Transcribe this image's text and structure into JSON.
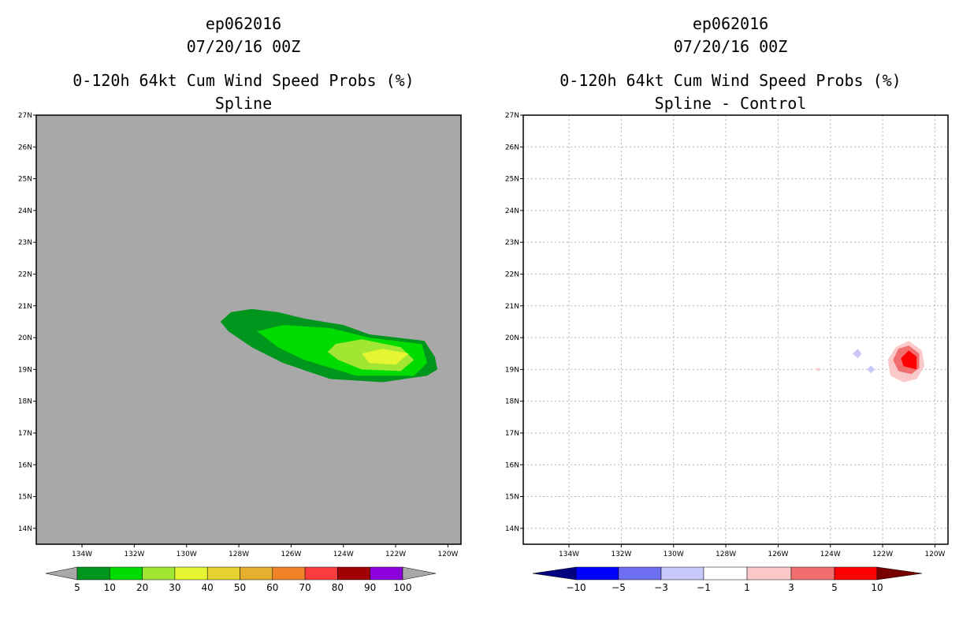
{
  "panels": [
    {
      "storm_id": "ep062016",
      "datetime": "07/20/16 00Z",
      "title": "0-120h 64kt Cum Wind Speed Probs (%)",
      "subtitle": "Spline"
    },
    {
      "storm_id": "ep062016",
      "datetime": "07/20/16 00Z",
      "title": "0-120h 64kt Cum Wind Speed Probs (%)",
      "subtitle": "Spline - Control"
    }
  ],
  "axes": {
    "lat_labels": [
      "14N",
      "15N",
      "16N",
      "17N",
      "18N",
      "19N",
      "20N",
      "21N",
      "22N",
      "23N",
      "24N",
      "25N",
      "26N",
      "27N"
    ],
    "lon_labels": [
      "134W",
      "132W",
      "130W",
      "128W",
      "126W",
      "124W",
      "122W",
      "120W"
    ]
  },
  "chart_data": [
    {
      "type": "heatmap",
      "title": "0-120h 64kt Cum Wind Speed Probs (%)",
      "subtitle": "Spline",
      "x_range_lon": [
        -135.75,
        -119.5
      ],
      "y_range_lat": [
        13.5,
        27.0
      ],
      "background_color": "#a8a8a8",
      "legend": {
        "levels": [
          "5",
          "10",
          "20",
          "30",
          "40",
          "50",
          "60",
          "70",
          "80",
          "90",
          "100"
        ],
        "colors": [
          "#00961e",
          "#00dc00",
          "#a0e632",
          "#e6f532",
          "#e6d232",
          "#e6af2d",
          "#f08228",
          "#fa3c3c",
          "#a00000",
          "#8c00dc"
        ]
      },
      "contours": [
        {
          "level": 5,
          "color": "#00961e",
          "polygon": [
            [
              -128.7,
              20.5
            ],
            [
              -128.3,
              20.8
            ],
            [
              -127.5,
              20.9
            ],
            [
              -126.5,
              20.8
            ],
            [
              -125.5,
              20.6
            ],
            [
              -124.0,
              20.4
            ],
            [
              -123.0,
              20.1
            ],
            [
              -120.9,
              19.9
            ],
            [
              -120.5,
              19.4
            ],
            [
              -120.4,
              19.0
            ],
            [
              -120.8,
              18.8
            ],
            [
              -122.5,
              18.6
            ],
            [
              -124.5,
              18.7
            ],
            [
              -126.3,
              19.2
            ],
            [
              -127.5,
              19.7
            ],
            [
              -128.4,
              20.2
            ]
          ]
        },
        {
          "level": 10,
          "color": "#00dc00",
          "polygon": [
            [
              -127.3,
              20.2
            ],
            [
              -126.3,
              20.4
            ],
            [
              -124.5,
              20.3
            ],
            [
              -123.0,
              20.0
            ],
            [
              -121.0,
              19.8
            ],
            [
              -120.8,
              19.2
            ],
            [
              -121.3,
              18.8
            ],
            [
              -123.5,
              18.8
            ],
            [
              -125.5,
              19.3
            ],
            [
              -126.5,
              19.7
            ]
          ]
        },
        {
          "level": 20,
          "color": "#a0e632",
          "polygon": [
            [
              -124.3,
              19.8
            ],
            [
              -123.3,
              19.95
            ],
            [
              -121.8,
              19.7
            ],
            [
              -121.3,
              19.3
            ],
            [
              -121.8,
              18.95
            ],
            [
              -123.3,
              19.0
            ],
            [
              -124.2,
              19.3
            ],
            [
              -124.6,
              19.55
            ]
          ]
        },
        {
          "level": 30,
          "color": "#e6f532",
          "polygon": [
            [
              -123.3,
              19.5
            ],
            [
              -122.5,
              19.65
            ],
            [
              -121.5,
              19.5
            ],
            [
              -122.0,
              19.15
            ],
            [
              -123.0,
              19.2
            ]
          ]
        }
      ]
    },
    {
      "type": "heatmap",
      "title": "0-120h 64kt Cum Wind Speed Probs (%)",
      "subtitle": "Spline - Control",
      "x_range_lon": [
        -135.75,
        -119.5
      ],
      "y_range_lat": [
        13.5,
        27.0
      ],
      "background_color": "#ffffff",
      "gridlines": true,
      "legend": {
        "levels": [
          "-10",
          "-5",
          "-3",
          "-1",
          "1",
          "3",
          "5",
          "10"
        ],
        "colors": [
          "#000080",
          "#0000ff",
          "#6e6ef0",
          "#c8c8fa",
          "#ffffff",
          "#fac8c8",
          "#f06e6e",
          "#ff0000",
          "#780000"
        ]
      },
      "features": [
        {
          "kind": "pos",
          "value_range": "1 to 3",
          "color": "#fac8c8",
          "polygon": [
            [
              -121.0,
              19.9
            ],
            [
              -120.5,
              19.6
            ],
            [
              -120.4,
              19.1
            ],
            [
              -120.7,
              18.7
            ],
            [
              -121.2,
              18.6
            ],
            [
              -121.7,
              18.8
            ],
            [
              -121.8,
              19.3
            ],
            [
              -121.5,
              19.7
            ]
          ]
        },
        {
          "kind": "pos",
          "value_range": "3 to 5",
          "color": "#f06e6e",
          "polygon": [
            [
              -121.0,
              19.75
            ],
            [
              -120.6,
              19.5
            ],
            [
              -120.6,
              19.05
            ],
            [
              -120.9,
              18.85
            ],
            [
              -121.4,
              18.95
            ],
            [
              -121.6,
              19.3
            ],
            [
              -121.4,
              19.65
            ]
          ]
        },
        {
          "kind": "pos",
          "value_range": "5 to 10",
          "color": "#ff0000",
          "polygon": [
            [
              -121.0,
              19.6
            ],
            [
              -120.7,
              19.4
            ],
            [
              -120.7,
              19.0
            ],
            [
              -121.2,
              19.1
            ],
            [
              -121.3,
              19.35
            ]
          ]
        },
        {
          "kind": "neg",
          "value_range": "-3 to -1",
          "color": "#c8c8fa",
          "polygon": [
            [
              -122.95,
              19.65
            ],
            [
              -122.8,
              19.5
            ],
            [
              -122.95,
              19.35
            ],
            [
              -123.15,
              19.5
            ]
          ]
        },
        {
          "kind": "neg",
          "value_range": "-3 to -1",
          "color": "#c8c8fa",
          "polygon": [
            [
              -122.45,
              19.12
            ],
            [
              -122.3,
              19.0
            ],
            [
              -122.45,
              18.88
            ],
            [
              -122.6,
              19.0
            ]
          ]
        },
        {
          "kind": "pos",
          "value_range": "1 to 3",
          "color": "#fac8c8",
          "polygon": [
            [
              -124.45,
              19.05
            ],
            [
              -124.35,
              19.0
            ],
            [
              -124.45,
              18.95
            ],
            [
              -124.6,
              19.0
            ]
          ]
        }
      ]
    }
  ]
}
